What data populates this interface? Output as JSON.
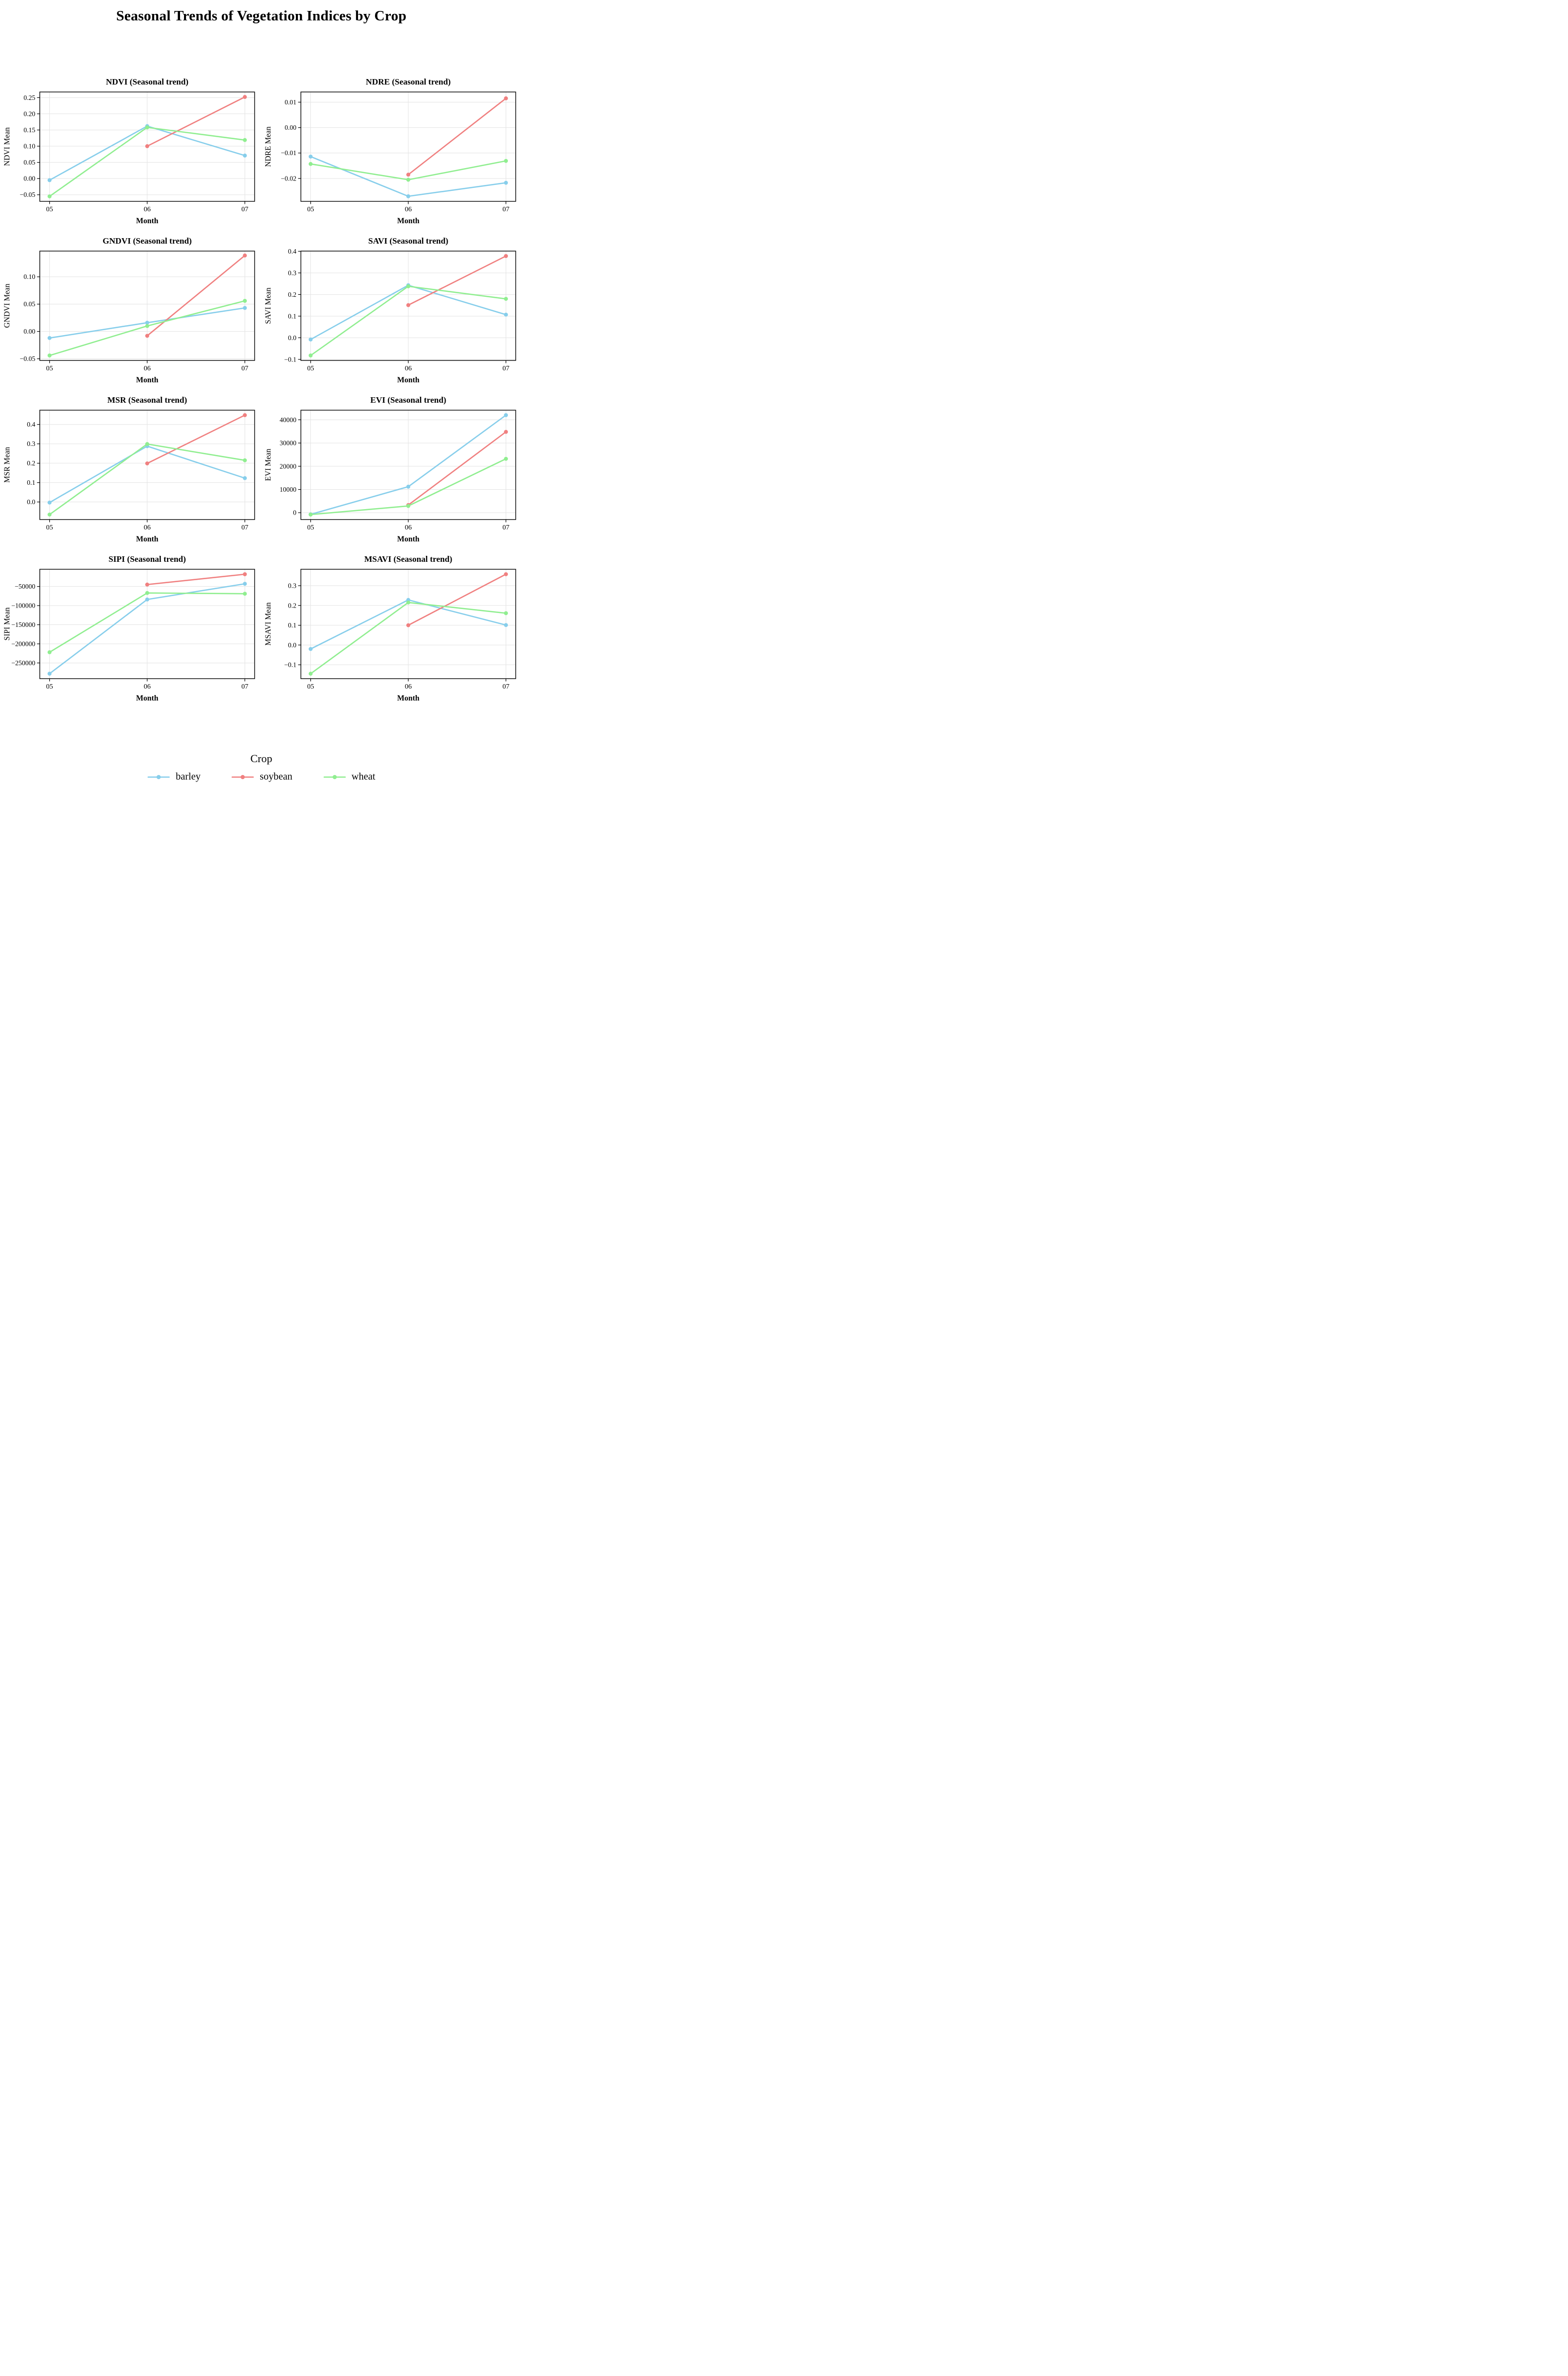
{
  "figure": {
    "title": "Seasonal Trends of Vegetation Indices by Crop"
  },
  "legend": {
    "title": "Crop",
    "entries": [
      {
        "label": "barley",
        "color": "#87CEEB"
      },
      {
        "label": "soybean",
        "color": "#F08080"
      },
      {
        "label": "wheat",
        "color": "#90EE90"
      }
    ]
  },
  "chart_data": [
    {
      "type": "line",
      "title": "NDVI (Seasonal trend)",
      "xlabel": "Month",
      "ylabel": "NDVI Mean",
      "categories": [
        "05",
        "06",
        "07"
      ],
      "ylim": [
        -0.0704,
        0.2674
      ],
      "yticks": [
        -0.05,
        0.0,
        0.05,
        0.1,
        0.15,
        0.2,
        0.25
      ],
      "ytick_labels": [
        "−0.05",
        "0.00",
        "0.05",
        "0.10",
        "0.15",
        "0.20",
        "0.25"
      ],
      "grid": true,
      "series": [
        {
          "name": "barley",
          "x": [
            0,
            1,
            2
          ],
          "y": [
            -0.005,
            0.162,
            0.071
          ]
        },
        {
          "name": "soybean",
          "x": [
            1,
            2
          ],
          "y": [
            0.1,
            0.252
          ]
        },
        {
          "name": "wheat",
          "x": [
            0,
            1,
            2
          ],
          "y": [
            -0.055,
            0.158,
            0.119
          ]
        }
      ]
    },
    {
      "type": "line",
      "title": "NDRE (Seasonal trend)",
      "xlabel": "Month",
      "ylabel": "NDRE Mean",
      "categories": [
        "05",
        "06",
        "07"
      ],
      "ylim": [
        -0.029,
        0.014
      ],
      "yticks": [
        -0.02,
        -0.01,
        0.0,
        0.01
      ],
      "ytick_labels": [
        "−0.02",
        "−0.01",
        "0.00",
        "0.01"
      ],
      "grid": true,
      "series": [
        {
          "name": "barley",
          "x": [
            0,
            1,
            2
          ],
          "y": [
            -0.0114,
            -0.027,
            -0.0217
          ]
        },
        {
          "name": "soybean",
          "x": [
            1,
            2
          ],
          "y": [
            -0.0185,
            0.0115
          ]
        },
        {
          "name": "wheat",
          "x": [
            0,
            1,
            2
          ],
          "y": [
            -0.0143,
            -0.0205,
            -0.0131
          ]
        }
      ]
    },
    {
      "type": "line",
      "title": "GNDVI (Seasonal trend)",
      "xlabel": "Month",
      "ylabel": "GNDVI Mean",
      "categories": [
        "05",
        "06",
        "07"
      ],
      "ylim": [
        -0.0531,
        0.1471
      ],
      "yticks": [
        -0.05,
        0.0,
        0.05,
        0.1
      ],
      "ytick_labels": [
        "−0.05",
        "0.00",
        "0.05",
        "0.10"
      ],
      "grid": true,
      "series": [
        {
          "name": "barley",
          "x": [
            0,
            1,
            2
          ],
          "y": [
            -0.012,
            0.016,
            0.043
          ]
        },
        {
          "name": "soybean",
          "x": [
            1,
            2
          ],
          "y": [
            -0.008,
            0.139
          ]
        },
        {
          "name": "wheat",
          "x": [
            0,
            1,
            2
          ],
          "y": [
            -0.044,
            0.01,
            0.056
          ]
        }
      ]
    },
    {
      "type": "line",
      "title": "SAVI (Seasonal trend)",
      "xlabel": "Month",
      "ylabel": "SAVI Mean",
      "categories": [
        "05",
        "06",
        "07"
      ],
      "ylim": [
        -0.105,
        0.401
      ],
      "yticks": [
        -0.1,
        0.0,
        0.1,
        0.2,
        0.3,
        0.4
      ],
      "ytick_labels": [
        "−0.1",
        "0.0",
        "0.1",
        "0.2",
        "0.3",
        "0.4"
      ],
      "grid": true,
      "series": [
        {
          "name": "barley",
          "x": [
            0,
            1,
            2
          ],
          "y": [
            -0.008,
            0.243,
            0.107
          ]
        },
        {
          "name": "soybean",
          "x": [
            1,
            2
          ],
          "y": [
            0.151,
            0.378
          ]
        },
        {
          "name": "wheat",
          "x": [
            0,
            1,
            2
          ],
          "y": [
            -0.082,
            0.238,
            0.18
          ]
        }
      ]
    },
    {
      "type": "line",
      "title": "MSR (Seasonal trend)",
      "xlabel": "Month",
      "ylabel": "MSR Mean",
      "categories": [
        "05",
        "06",
        "07"
      ],
      "ylim": [
        -0.0907,
        0.4737
      ],
      "yticks": [
        0.0,
        0.1,
        0.2,
        0.3,
        0.4
      ],
      "ytick_labels": [
        "0.0",
        "0.1",
        "0.2",
        "0.3",
        "0.4"
      ],
      "grid": true,
      "series": [
        {
          "name": "barley",
          "x": [
            0,
            1,
            2
          ],
          "y": [
            -0.003,
            0.288,
            0.123
          ]
        },
        {
          "name": "soybean",
          "x": [
            1,
            2
          ],
          "y": [
            0.199,
            0.448
          ]
        },
        {
          "name": "wheat",
          "x": [
            0,
            1,
            2
          ],
          "y": [
            -0.065,
            0.299,
            0.215
          ]
        }
      ]
    },
    {
      "type": "line",
      "title": "EVI (Seasonal trend)",
      "xlabel": "Month",
      "ylabel": "EVI Mean",
      "categories": [
        "05",
        "06",
        "07"
      ],
      "ylim": [
        -2940,
        44140
      ],
      "yticks": [
        0,
        10000,
        20000,
        30000,
        40000
      ],
      "ytick_labels": [
        "0",
        "10000",
        "20000",
        "30000",
        "40000"
      ],
      "grid": true,
      "series": [
        {
          "name": "barley",
          "x": [
            0,
            1,
            2
          ],
          "y": [
            -700,
            11200,
            42000
          ]
        },
        {
          "name": "soybean",
          "x": [
            1,
            2
          ],
          "y": [
            3300,
            34800
          ]
        },
        {
          "name": "wheat",
          "x": [
            0,
            1,
            2
          ],
          "y": [
            -800,
            2900,
            23200
          ]
        }
      ]
    },
    {
      "type": "line",
      "title": "SIPI (Seasonal trend)",
      "xlabel": "Month",
      "ylabel": "SIPI Mean",
      "categories": [
        "05",
        "06",
        "07"
      ],
      "ylim": [
        -291000,
        -5000
      ],
      "yticks": [
        -250000,
        -200000,
        -150000,
        -100000,
        -50000
      ],
      "ytick_labels": [
        "−250000",
        "−200000",
        "−150000",
        "−100000",
        "−50000"
      ],
      "grid": true,
      "series": [
        {
          "name": "barley",
          "x": [
            0,
            1,
            2
          ],
          "y": [
            -278000,
            -84000,
            -43000
          ]
        },
        {
          "name": "soybean",
          "x": [
            1,
            2
          ],
          "y": [
            -45000,
            -18000
          ]
        },
        {
          "name": "wheat",
          "x": [
            0,
            1,
            2
          ],
          "y": [
            -222000,
            -67000,
            -69000
          ]
        }
      ]
    },
    {
      "type": "line",
      "title": "MSAVI (Seasonal trend)",
      "xlabel": "Month",
      "ylabel": "MSAVI Mean",
      "categories": [
        "05",
        "06",
        "07"
      ],
      "ylim": [
        -0.17,
        0.383
      ],
      "yticks": [
        -0.1,
        0.0,
        0.1,
        0.2,
        0.3
      ],
      "ytick_labels": [
        "−0.1",
        "0.0",
        "0.1",
        "0.2",
        "0.3"
      ],
      "grid": true,
      "series": [
        {
          "name": "barley",
          "x": [
            0,
            1,
            2
          ],
          "y": [
            -0.02,
            0.228,
            0.101
          ]
        },
        {
          "name": "soybean",
          "x": [
            1,
            2
          ],
          "y": [
            0.1,
            0.358
          ]
        },
        {
          "name": "wheat",
          "x": [
            0,
            1,
            2
          ],
          "y": [
            -0.145,
            0.215,
            0.161
          ]
        }
      ]
    }
  ]
}
